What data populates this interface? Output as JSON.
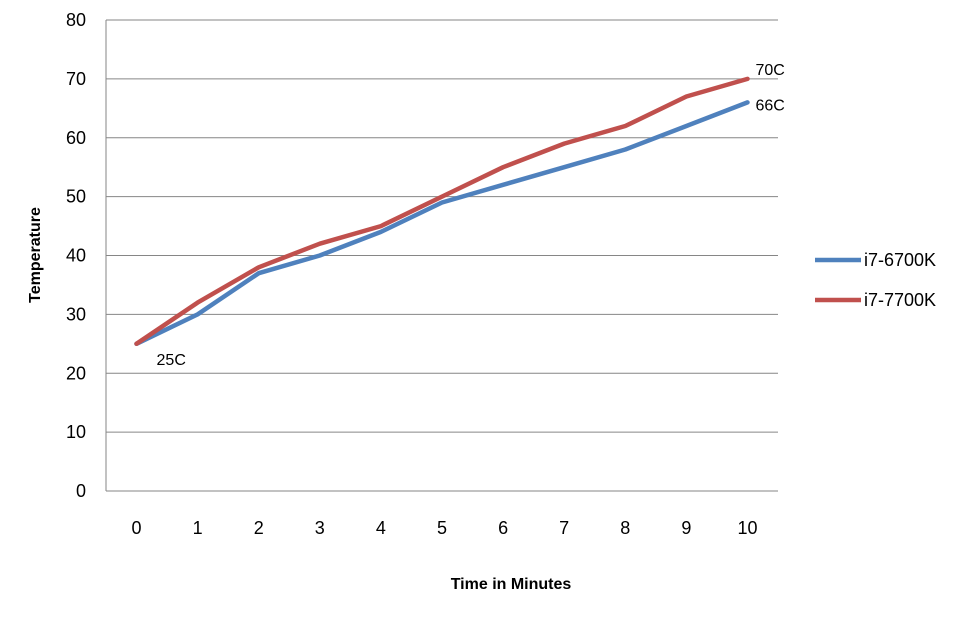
{
  "chart_data": {
    "type": "line",
    "title": "",
    "xlabel": "Time in Minutes",
    "ylabel": "Temperature",
    "x": [
      0,
      1,
      2,
      3,
      4,
      5,
      6,
      7,
      8,
      9,
      10
    ],
    "ylim": [
      0,
      80
    ],
    "yticks": [
      0,
      10,
      20,
      30,
      40,
      50,
      60,
      70,
      80
    ],
    "grid": true,
    "legend_position": "right",
    "series": [
      {
        "name": "i7-6700K",
        "color": "#4F81BD",
        "values": [
          25,
          30,
          37,
          40,
          44,
          49,
          52,
          55,
          58,
          62,
          66
        ]
      },
      {
        "name": "i7-7700K",
        "color": "#C0504D",
        "values": [
          25,
          32,
          38,
          42,
          45,
          50,
          55,
          59,
          62,
          67,
          70
        ]
      }
    ],
    "annotations": [
      {
        "text": "25C",
        "x": 0,
        "y": 25
      },
      {
        "text": "70C",
        "x": 10,
        "y": 70
      },
      {
        "text": "66C",
        "x": 10,
        "y": 66
      }
    ]
  }
}
